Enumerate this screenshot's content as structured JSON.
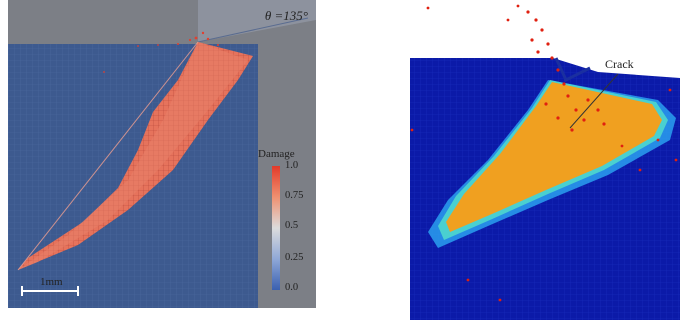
{
  "left_panel": {
    "angle_label": "θ =135°",
    "colorbar": {
      "title": "Damage",
      "ticks": [
        "1.0",
        "0.75",
        "0.5",
        "0.25",
        "0.0"
      ],
      "colors": [
        "#e23a2a",
        "#f09070",
        "#dcdcdc",
        "#8fa8d8",
        "#3a60b0"
      ]
    },
    "scale_bar": "1mm",
    "background_color": "#3d5a8f"
  },
  "right_panel": {
    "crack_label": "Crack",
    "background_color": "#0b1aa8"
  }
}
